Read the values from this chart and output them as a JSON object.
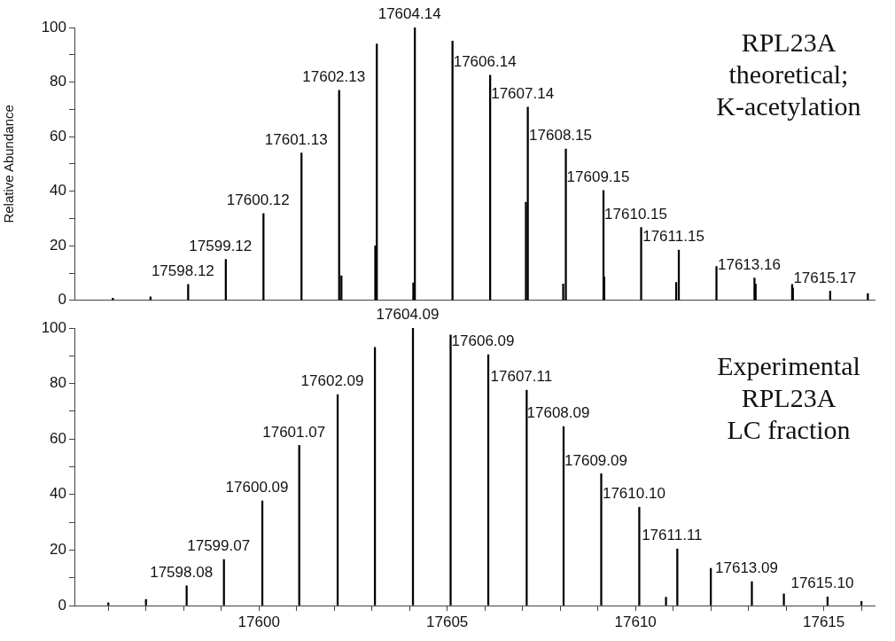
{
  "chart_data": [
    {
      "type": "bar",
      "ylabel": "Relative Abundance",
      "color": "#000000",
      "tick_labels": "y",
      "xlim": [
        17595.1,
        17616.35
      ],
      "ylim": [
        0,
        100
      ],
      "yticks": [
        0,
        {
          "value": 10,
          "label": null
        },
        20,
        {
          "value": 30,
          "label": null
        },
        40,
        {
          "value": 50,
          "label": null
        },
        60,
        {
          "value": 70,
          "label": null
        },
        80,
        {
          "value": 90,
          "label": null
        },
        100
      ],
      "x": [
        17596.12,
        17597.12,
        17598.12,
        17599.12,
        17600.12,
        17601.13,
        17602.13,
        17602.19,
        17603.09,
        17603.13,
        17604.1,
        17604.14,
        17605.14,
        17606.14,
        17607.09,
        17607.14,
        17608.08,
        17608.15,
        17609.15,
        17609.17,
        17610.15,
        17611.08,
        17611.15,
        17612.15,
        17613.16,
        17613.19,
        17614.16,
        17614.18,
        17615.17,
        17616.17
      ],
      "values": [
        0.8,
        1.3,
        5.8,
        15,
        31.8,
        54,
        77,
        9,
        20,
        94,
        6.4,
        100,
        95,
        82.5,
        36,
        70.8,
        6,
        55.5,
        40.3,
        8.6,
        26.7,
        6.6,
        18.4,
        12.4,
        8.2,
        6,
        5.8,
        4.5,
        3.4,
        2.5
      ],
      "annotations": [
        "RPL23A\ntheoretical;\nK-acetylation",
        {
          "text": "17598.12",
          "x": 17598.12,
          "y": 5.8
        },
        {
          "text": "17599.12",
          "x": 17599.12,
          "y": 15
        },
        {
          "text": "17600.12",
          "x": 17600.12,
          "y": 31.8
        },
        {
          "text": "17601.13",
          "x": 17601.13,
          "y": 54
        },
        {
          "text": "17602.13",
          "x": 17602.13,
          "y": 77
        },
        {
          "text": "17604.14",
          "x": 17604.14,
          "y": 100
        },
        {
          "text": "17606.14",
          "x": 17606.14,
          "y": 82.5
        },
        {
          "text": "17607.14",
          "x": 17607.14,
          "y": 70.8
        },
        {
          "text": "17608.15",
          "x": 17608.15,
          "y": 55.5
        },
        {
          "text": "17609.15",
          "x": 17609.15,
          "y": 40.3
        },
        {
          "text": "17610.15",
          "x": 17610.15,
          "y": 26.7
        },
        {
          "text": "17611.15",
          "x": 17611.15,
          "y": 18.4
        },
        {
          "text": "17613.16",
          "x": 17613.16,
          "y": 8.2
        },
        {
          "text": "17615.17",
          "x": 17615.17,
          "y": 3.4
        }
      ]
    },
    {
      "type": "bar",
      "color": "#000000",
      "xlim": [
        17595.1,
        17616.35
      ],
      "ylim": [
        0,
        100
      ],
      "yticks": [
        0,
        {
          "value": 10,
          "label": null
        },
        20,
        {
          "value": 30,
          "label": null
        },
        40,
        {
          "value": 50,
          "label": null
        },
        60,
        {
          "value": 70,
          "label": null
        },
        80,
        {
          "value": 90,
          "label": null
        },
        100
      ],
      "xticks": [
        {
          "value": 17596,
          "label": null
        },
        {
          "value": 17597,
          "label": null
        },
        {
          "value": 17598,
          "label": null
        },
        {
          "value": 17599,
          "label": null
        },
        17600,
        {
          "value": 17601,
          "label": null
        },
        {
          "value": 17602,
          "label": null
        },
        {
          "value": 17603,
          "label": null
        },
        {
          "value": 17604,
          "label": null
        },
        17605,
        {
          "value": 17606,
          "label": null
        },
        {
          "value": 17607,
          "label": null
        },
        {
          "value": 17608,
          "label": null
        },
        {
          "value": 17609,
          "label": null
        },
        17610,
        {
          "value": 17611,
          "label": null
        },
        {
          "value": 17612,
          "label": null
        },
        {
          "value": 17613,
          "label": null
        },
        {
          "value": 17614,
          "label": null
        },
        17615,
        {
          "value": 17616,
          "label": null
        }
      ],
      "x": [
        17596.0,
        17597.0,
        17598.08,
        17599.07,
        17600.09,
        17601.07,
        17602.09,
        17603.08,
        17604.09,
        17605.09,
        17606.09,
        17607.11,
        17608.09,
        17609.09,
        17610.1,
        17610.81,
        17611.11,
        17612.0,
        17613.09,
        17613.94,
        17615.1,
        17616.0
      ],
      "values": [
        1,
        2.2,
        7.1,
        16.6,
        37.7,
        57.7,
        76,
        93,
        100,
        97.5,
        90.4,
        77.6,
        64.5,
        47.5,
        35.4,
        3,
        20.4,
        13.4,
        8.6,
        4.2,
        3.1,
        1.5
      ],
      "annotations": [
        "Experimental\nRPL23A\nLC fraction",
        {
          "text": "17598.08",
          "x": 17598.08,
          "y": 7.1
        },
        {
          "text": "17599.07",
          "x": 17599.07,
          "y": 16.6
        },
        {
          "text": "17600.09",
          "x": 17600.09,
          "y": 37.7
        },
        {
          "text": "17601.07",
          "x": 17601.07,
          "y": 57.7
        },
        {
          "text": "17602.09",
          "x": 17602.09,
          "y": 76
        },
        {
          "text": "17604.09",
          "x": 17604.09,
          "y": 100
        },
        {
          "text": "17606.09",
          "x": 17606.09,
          "y": 90.4
        },
        {
          "text": "17607.11",
          "x": 17607.11,
          "y": 77.6
        },
        {
          "text": "17608.09",
          "x": 17608.09,
          "y": 64.5
        },
        {
          "text": "17609.09",
          "x": 17609.09,
          "y": 47.5
        },
        {
          "text": "17610.10",
          "x": 17610.1,
          "y": 35.4
        },
        {
          "text": "17611.11",
          "x": 17611.11,
          "y": 20.4
        },
        {
          "text": "17613.09",
          "x": 17613.09,
          "y": 8.6
        },
        {
          "text": "17615.10",
          "x": 17615.1,
          "y": 3.1
        }
      ]
    }
  ]
}
